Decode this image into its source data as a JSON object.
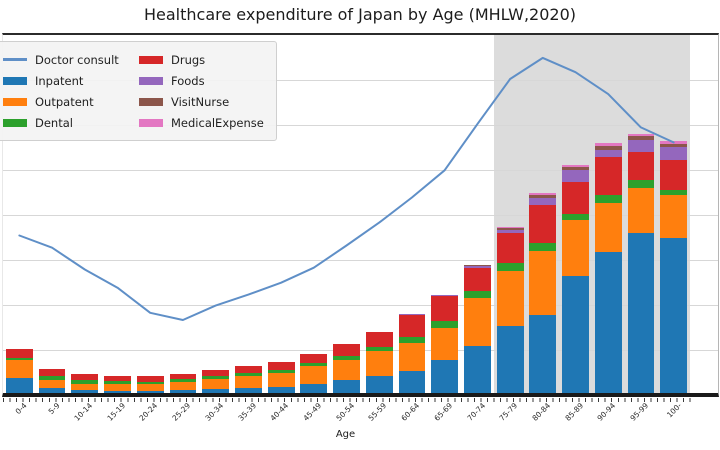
{
  "chart_data": {
    "type": "bar",
    "stacked": true,
    "title": "Healthcare expenditure of Japan by Age (MHLW,2020)",
    "xlabel": "Age",
    "ylabel": "",
    "ylim": [
      0,
      100
    ],
    "grid": "horizontal",
    "legend_position": "upper-left",
    "categories": [
      "0-4",
      "5-9",
      "10-14",
      "15-19",
      "20-24",
      "25-29",
      "30-34",
      "35-39",
      "40-44",
      "45-49",
      "50-54",
      "55-59",
      "60-64",
      "65-69",
      "70-74",
      "75-79",
      "80-84",
      "85-89",
      "90-94",
      "95-99",
      "100-"
    ],
    "series": [
      {
        "name": "Inpatent",
        "color": "#1f77b4",
        "values": [
          4.2,
          1.4,
          0.8,
          0.6,
          0.7,
          0.8,
          1.1,
          1.4,
          1.7,
          2.5,
          3.6,
          4.8,
          6.2,
          9.2,
          13.2,
          18.8,
          21.8,
          32.8,
          39.5,
          44.8,
          43.4
        ]
      },
      {
        "name": "Outpatent",
        "color": "#ff7f0e",
        "values": [
          5.0,
          2.2,
          1.7,
          2.0,
          1.7,
          2.2,
          2.8,
          3.4,
          3.9,
          5.0,
          5.6,
          7.0,
          7.8,
          9.0,
          13.4,
          15.4,
          17.9,
          15.4,
          13.7,
          12.6,
          11.8
        ]
      },
      {
        "name": "Dental",
        "color": "#2ca02c",
        "values": [
          0.5,
          1.1,
          1.1,
          0.8,
          0.6,
          0.8,
          0.8,
          0.8,
          0.8,
          0.8,
          1.1,
          1.1,
          1.7,
          2.0,
          2.0,
          2.2,
          2.2,
          1.7,
          2.0,
          2.0,
          1.4
        ]
      },
      {
        "name": "Drugs",
        "color": "#d62728",
        "values": [
          2.5,
          2.0,
          1.7,
          1.4,
          1.7,
          1.4,
          1.7,
          2.0,
          2.2,
          2.5,
          3.4,
          4.2,
          6.2,
          7.0,
          6.2,
          8.4,
          10.6,
          9.0,
          10.6,
          7.8,
          8.4
        ]
      },
      {
        "name": "Foods",
        "color": "#9467bd",
        "values": [
          0,
          0,
          0,
          0,
          0,
          0,
          0,
          0,
          0,
          0,
          0,
          0,
          0.3,
          0.3,
          0.8,
          0.8,
          2.0,
          3.4,
          2.2,
          3.4,
          3.6
        ]
      },
      {
        "name": "VisitNurse",
        "color": "#8c564b",
        "values": [
          0,
          0,
          0,
          0,
          0,
          0,
          0,
          0,
          0,
          0,
          0,
          0,
          0,
          0,
          0.2,
          0.4,
          0.8,
          0.8,
          1.1,
          1.1,
          1.1
        ]
      },
      {
        "name": "MedicalExpense",
        "color": "#e377c2",
        "values": [
          0,
          0,
          0,
          0,
          0,
          0,
          0,
          0,
          0,
          0,
          0,
          0,
          0,
          0,
          0.1,
          0.3,
          0.6,
          0.6,
          0.8,
          0.6,
          0.8
        ]
      }
    ],
    "line_series": {
      "name": "Doctor consult",
      "color": "#5f8fc7",
      "values": [
        44.0,
        40.6,
        34.5,
        29.4,
        22.4,
        20.4,
        24.4,
        27.5,
        30.8,
        35.0,
        41.2,
        47.6,
        54.6,
        62.2,
        75.1,
        87.7,
        93.6,
        89.6,
        83.5,
        74.2,
        70.0
      ]
    },
    "highlight_band": {
      "from": "75-79",
      "to": "100-",
      "color": "#dcdcdc"
    },
    "legend_entries": [
      "Doctor consult",
      "Inpatent",
      "Outpatent",
      "Dental",
      "Drugs",
      "Foods",
      "VisitNurse",
      "MedicalExpense"
    ]
  }
}
